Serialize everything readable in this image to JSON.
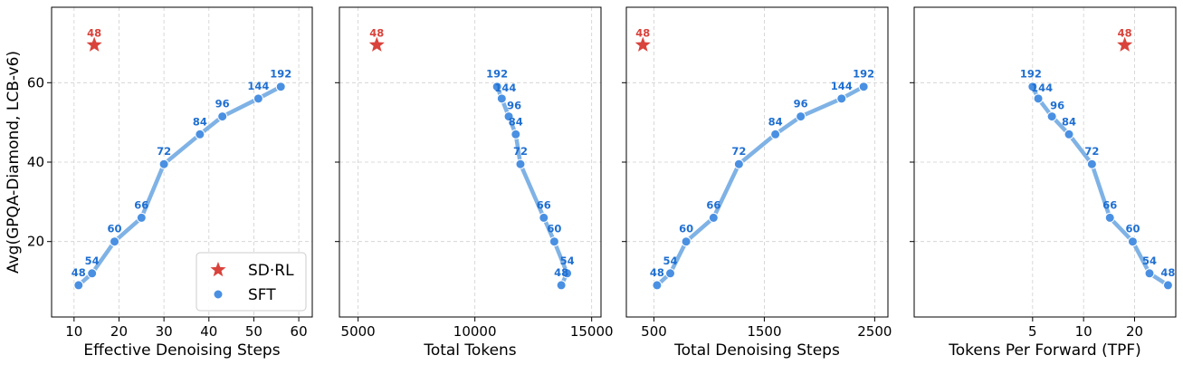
{
  "chart_data": [
    {
      "type": "line",
      "xlabel": "Effective Denoising Steps",
      "ylabel": "Avg(GPQA-Diamond, LCB-v6)",
      "xlim": [
        5,
        63
      ],
      "ylim": [
        1,
        79
      ],
      "xticks": [
        10,
        20,
        30,
        40,
        50,
        60
      ],
      "yticks": [
        20,
        40,
        60
      ],
      "grid": true,
      "legend": {
        "placement": "bottom-right",
        "entries": [
          "SD·RL",
          "SFT"
        ]
      },
      "series": [
        {
          "name": "SFT",
          "color": "#4a90e2",
          "x": [
            11,
            14,
            19,
            25,
            30,
            38,
            43,
            51,
            56
          ],
          "y": [
            9,
            12,
            20,
            26,
            39.5,
            47,
            51.5,
            56,
            59
          ],
          "labels": [
            "48",
            "54",
            "60",
            "66",
            "72",
            "84",
            "96",
            "144",
            "192"
          ]
        },
        {
          "name": "SD·RL",
          "color": "#d9433b",
          "marker": "star",
          "x": [
            14.5
          ],
          "y": [
            69.5
          ],
          "labels": [
            "48"
          ]
        }
      ]
    },
    {
      "type": "line",
      "xlabel": "Total Tokens",
      "xlim": [
        4200,
        15400
      ],
      "ylim": [
        1,
        79
      ],
      "xticks": [
        5000,
        10000,
        15000
      ],
      "yticks": [
        20,
        40,
        60
      ],
      "grid": true,
      "series": [
        {
          "name": "SFT",
          "color": "#4a90e2",
          "x": [
            13700,
            13950,
            13400,
            12950,
            11950,
            11750,
            11450,
            11150,
            10950
          ],
          "y": [
            9,
            12,
            20,
            26,
            39.5,
            47,
            51.5,
            56,
            59
          ],
          "labels": [
            "48",
            "54",
            "60",
            "66",
            "72",
            "84",
            "96",
            "144",
            "192"
          ]
        },
        {
          "name": "SD·RL",
          "color": "#d9433b",
          "marker": "star",
          "x": [
            5800
          ],
          "y": [
            69.5
          ],
          "labels": [
            "48"
          ]
        }
      ]
    },
    {
      "type": "line",
      "xlabel": "Total Denoising Steps",
      "xlim": [
        250,
        2620
      ],
      "ylim": [
        1,
        79
      ],
      "xticks": [
        500,
        1500,
        2500
      ],
      "yticks": [
        20,
        40,
        60
      ],
      "grid": true,
      "series": [
        {
          "name": "SFT",
          "color": "#4a90e2",
          "x": [
            528,
            648,
            792,
            1040,
            1270,
            1600,
            1830,
            2200,
            2400
          ],
          "y": [
            9,
            12,
            20,
            26,
            39.5,
            47,
            51.5,
            56,
            59
          ],
          "labels": [
            "48",
            "54",
            "60",
            "66",
            "72",
            "84",
            "96",
            "144",
            "192"
          ]
        },
        {
          "name": "SD·RL",
          "color": "#d9433b",
          "marker": "star",
          "x": [
            400
          ],
          "y": [
            69.5
          ],
          "labels": [
            "48"
          ]
        }
      ]
    },
    {
      "type": "line",
      "xlabel": "Tokens Per Forward (TPF)",
      "xlim": [
        1,
        35
      ],
      "ylim": [
        1,
        79
      ],
      "xticks": [
        5,
        10,
        20
      ],
      "xscale": "log",
      "yticks": [
        20,
        40,
        60
      ],
      "grid": true,
      "series": [
        {
          "name": "SFT",
          "color": "#4a90e2",
          "x": [
            31.5,
            24.5,
            19.5,
            14.3,
            11.2,
            8.2,
            6.5,
            5.4,
            5.0
          ],
          "y": [
            9,
            12,
            20,
            26,
            39.5,
            47,
            51.5,
            56,
            59
          ],
          "labels": [
            "48",
            "54",
            "60",
            "66",
            "72",
            "84",
            "96",
            "144",
            "192"
          ]
        },
        {
          "name": "SD·RL",
          "color": "#d9433b",
          "marker": "star",
          "x": [
            17.5
          ],
          "y": [
            69.5
          ],
          "labels": [
            "48"
          ]
        }
      ]
    }
  ]
}
